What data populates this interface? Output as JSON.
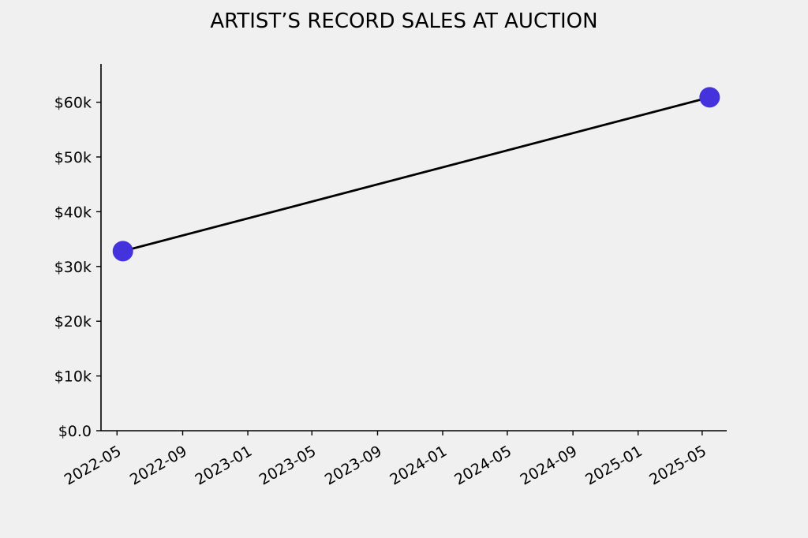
{
  "chart_data": {
    "type": "line",
    "title": "ARTIST’S RECORD SALES AT AUCTION",
    "xlabel": "",
    "ylabel": "",
    "x_axis_type": "date",
    "x_ticks": [
      "2022-05",
      "2022-09",
      "2023-01",
      "2023-05",
      "2023-09",
      "2024-01",
      "2024-05",
      "2024-09",
      "2025-01",
      "2025-05"
    ],
    "y_ticks": [
      {
        "value": 0,
        "label": "$0.0"
      },
      {
        "value": 10000,
        "label": "$10k"
      },
      {
        "value": 20000,
        "label": "$20k"
      },
      {
        "value": 30000,
        "label": "$30k"
      },
      {
        "value": 40000,
        "label": "$40k"
      },
      {
        "value": 50000,
        "label": "$50k"
      },
      {
        "value": 60000,
        "label": "$60k"
      }
    ],
    "xlim": [
      "2022-04-01",
      "2025-06-16"
    ],
    "ylim": [
      0,
      67000
    ],
    "grid": false,
    "legend": "none",
    "series": [
      {
        "points": [
          {
            "x": "2022-05-12",
            "y": 32800
          },
          {
            "x": "2025-05-15",
            "y": 60900
          }
        ],
        "line_color": "#000000",
        "marker_color": "#4433dd"
      }
    ]
  }
}
